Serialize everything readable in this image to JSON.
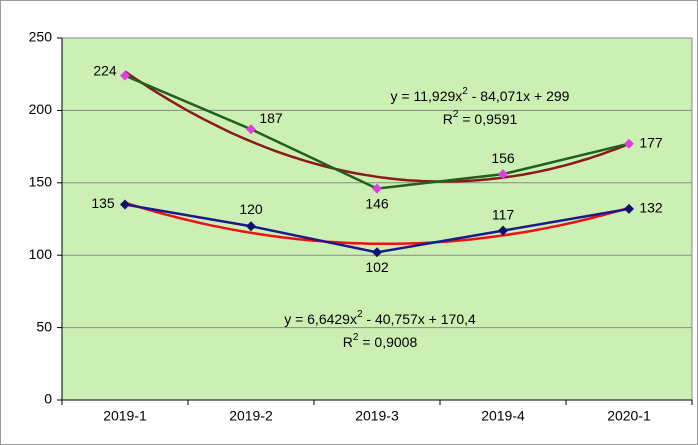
{
  "chart_data": {
    "type": "line",
    "categories": [
      "2019-1",
      "2019-2",
      "2019-3",
      "2019-4",
      "2020-1"
    ],
    "series": [
      {
        "values": [
          224,
          187,
          146,
          156,
          177
        ],
        "color": "#1f5f1f",
        "marker_color": "#e040e0",
        "trend_color": "#8b1a1a",
        "equation": [
          "y = 11,929x",
          "2",
          " - 84,071x + 299"
        ],
        "r_squared": [
          "R",
          "2",
          " = 0,9591"
        ]
      },
      {
        "values": [
          135,
          120,
          102,
          117,
          132
        ],
        "color": "#1a1a8c",
        "marker_color": "#10106e",
        "trend_color": "#ee1111",
        "equation": [
          "y = 6,6429x",
          "2",
          " - 40,757x + 170,4"
        ],
        "r_squared": [
          "R",
          "2",
          " = 0,9008"
        ]
      }
    ],
    "ylim": [
      0,
      250
    ],
    "yticks": [
      0,
      50,
      100,
      150,
      200,
      250
    ],
    "grid": true,
    "plot_background": "#ccf0b4"
  }
}
